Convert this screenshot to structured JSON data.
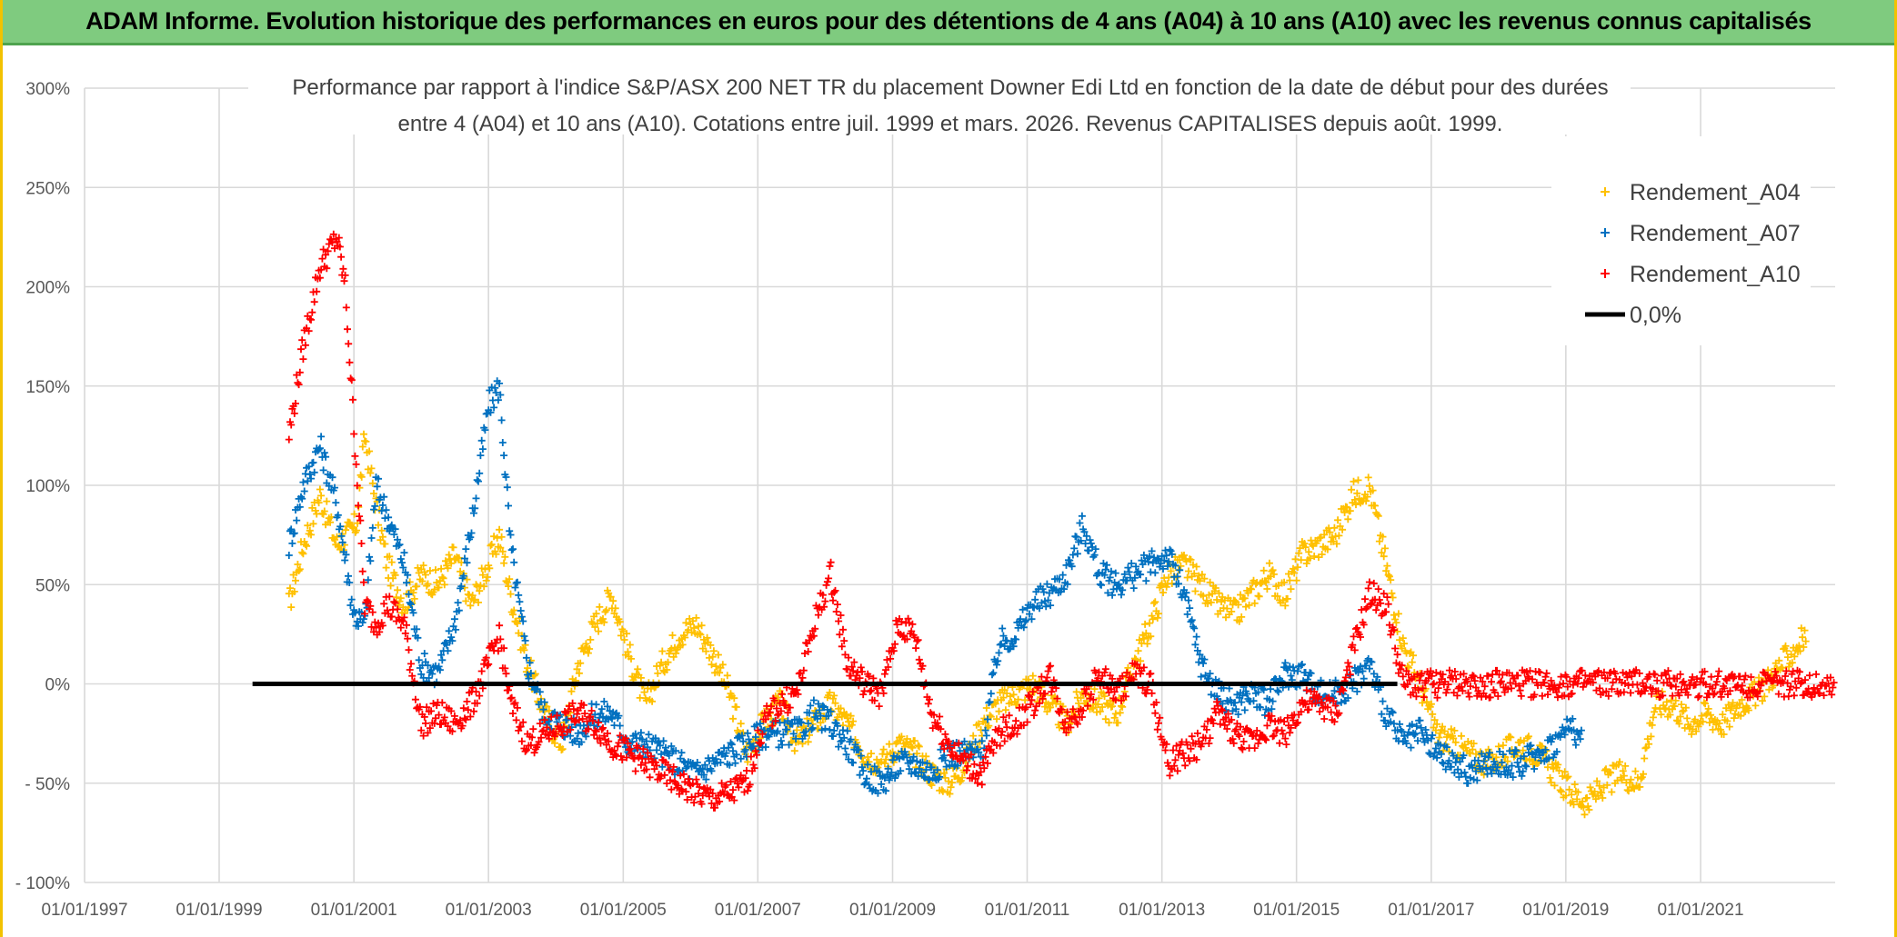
{
  "header": {
    "title": "ADAM Informe. Evolution historique des performances en euros pour des détentions de 4 ans (A04) à 10 ans (A10) avec les revenus connus capitalisés"
  },
  "chart_data": {
    "type": "scatter",
    "title_line1": "Performance par rapport à l'indice S&P/ASX 200 NET TR  du placement Downer Edi Ltd en fonction de la date de début pour des durées",
    "title_line2": "entre 4 (A04) et 10 ans (A10). Cotations entre juil. 1999 et mars. 2026. Revenus CAPITALISES depuis août. 1999.",
    "xlabel": "",
    "ylabel": "",
    "x_axis": {
      "type": "date",
      "range": [
        "1997-01-01",
        "2023-01-01"
      ],
      "tick_labels": [
        "01/01/1997",
        "01/01/1999",
        "01/01/2001",
        "01/01/2003",
        "01/01/2005",
        "01/01/2007",
        "01/01/2009",
        "01/01/2011",
        "01/01/2013",
        "01/01/2015",
        "01/01/2017",
        "01/01/2019",
        "01/01/2021"
      ]
    },
    "y_axis": {
      "range": [
        -100,
        300
      ],
      "unit": "%",
      "tick_values": [
        300,
        250,
        200,
        150,
        100,
        50,
        0,
        -50,
        -100
      ],
      "tick_labels": [
        "300%",
        "250%",
        "200%",
        "150%",
        "100%",
        "50%",
        "0%",
        "- 50%",
        "- 100%"
      ]
    },
    "grid": true,
    "legend_position": "top-right",
    "series": [
      {
        "name": "Rendement_A04",
        "color": "#ffc000",
        "marker": "plus",
        "points": [
          [
            "2000-01-15",
            40
          ],
          [
            "2000-04-01",
            70
          ],
          [
            "2000-07-01",
            95
          ],
          [
            "2000-10-01",
            70
          ],
          [
            "2001-01-15",
            80
          ],
          [
            "2001-03-01",
            125
          ],
          [
            "2001-05-01",
            90
          ],
          [
            "2001-07-01",
            60
          ],
          [
            "2001-10-01",
            40
          ],
          [
            "2002-01-01",
            55
          ],
          [
            "2002-04-01",
            50
          ],
          [
            "2002-07-01",
            65
          ],
          [
            "2002-10-01",
            40
          ],
          [
            "2003-01-01",
            60
          ],
          [
            "2003-03-01",
            75
          ],
          [
            "2003-05-01",
            45
          ],
          [
            "2003-08-01",
            10
          ],
          [
            "2003-11-01",
            -15
          ],
          [
            "2004-02-01",
            -30
          ],
          [
            "2004-05-01",
            10
          ],
          [
            "2004-08-01",
            30
          ],
          [
            "2004-11-01",
            45
          ],
          [
            "2005-02-01",
            15
          ],
          [
            "2005-05-01",
            -10
          ],
          [
            "2005-08-01",
            10
          ],
          [
            "2005-11-01",
            25
          ],
          [
            "2006-02-01",
            30
          ],
          [
            "2006-05-01",
            15
          ],
          [
            "2006-08-01",
            -5
          ],
          [
            "2006-11-01",
            -35
          ],
          [
            "2007-02-01",
            -20
          ],
          [
            "2007-05-01",
            -10
          ],
          [
            "2007-08-01",
            -30
          ],
          [
            "2007-11-01",
            -20
          ],
          [
            "2008-02-01",
            -10
          ],
          [
            "2008-05-01",
            -20
          ],
          [
            "2008-08-01",
            -35
          ],
          [
            "2008-11-01",
            -40
          ],
          [
            "2009-02-01",
            -30
          ],
          [
            "2009-05-01",
            -35
          ],
          [
            "2009-08-01",
            -45
          ],
          [
            "2009-11-01",
            -50
          ],
          [
            "2010-02-01",
            -40
          ],
          [
            "2010-05-01",
            -20
          ],
          [
            "2010-08-01",
            -10
          ],
          [
            "2010-11-01",
            -5
          ],
          [
            "2011-02-01",
            0
          ],
          [
            "2011-05-01",
            -10
          ],
          [
            "2011-08-01",
            -20
          ],
          [
            "2011-11-01",
            -5
          ],
          [
            "2012-02-01",
            -10
          ],
          [
            "2012-05-01",
            -15
          ],
          [
            "2012-08-01",
            10
          ],
          [
            "2012-11-01",
            30
          ],
          [
            "2013-02-01",
            55
          ],
          [
            "2013-05-01",
            60
          ],
          [
            "2013-08-01",
            50
          ],
          [
            "2013-11-01",
            40
          ],
          [
            "2014-02-01",
            35
          ],
          [
            "2014-05-01",
            45
          ],
          [
            "2014-08-01",
            55
          ],
          [
            "2014-11-01",
            45
          ],
          [
            "2015-02-01",
            65
          ],
          [
            "2015-05-01",
            70
          ],
          [
            "2015-08-01",
            75
          ],
          [
            "2015-11-01",
            95
          ],
          [
            "2016-02-01",
            100
          ],
          [
            "2016-05-01",
            60
          ],
          [
            "2016-08-01",
            20
          ],
          [
            "2016-11-01",
            0
          ],
          [
            "2017-02-01",
            -25
          ],
          [
            "2017-05-01",
            -30
          ],
          [
            "2017-08-01",
            -35
          ],
          [
            "2017-11-01",
            -40
          ],
          [
            "2018-02-01",
            -35
          ],
          [
            "2018-05-01",
            -30
          ],
          [
            "2018-08-01",
            -35
          ],
          [
            "2018-11-01",
            -45
          ],
          [
            "2019-02-01",
            -55
          ],
          [
            "2019-05-01",
            -60
          ],
          [
            "2019-08-01",
            -50
          ],
          [
            "2019-11-01",
            -45
          ],
          [
            "2020-02-01",
            -50
          ],
          [
            "2020-05-01",
            -10
          ],
          [
            "2020-08-01",
            -10
          ],
          [
            "2020-11-01",
            -20
          ],
          [
            "2021-02-01",
            -15
          ],
          [
            "2021-05-01",
            -20
          ],
          [
            "2021-08-01",
            -10
          ],
          [
            "2021-11-01",
            -5
          ],
          [
            "2022-02-01",
            5
          ],
          [
            "2022-05-01",
            15
          ],
          [
            "2022-08-01",
            25
          ]
        ]
      },
      {
        "name": "Rendement_A07",
        "color": "#0070c0",
        "marker": "plus",
        "points": [
          [
            "2000-01-15",
            70
          ],
          [
            "2000-04-01",
            100
          ],
          [
            "2000-07-01",
            120
          ],
          [
            "2000-10-01",
            90
          ],
          [
            "2001-01-01",
            35
          ],
          [
            "2001-03-01",
            30
          ],
          [
            "2001-05-01",
            100
          ],
          [
            "2001-07-01",
            85
          ],
          [
            "2001-10-01",
            60
          ],
          [
            "2002-01-01",
            10
          ],
          [
            "2002-04-01",
            5
          ],
          [
            "2002-07-01",
            30
          ],
          [
            "2002-10-01",
            80
          ],
          [
            "2003-01-01",
            140
          ],
          [
            "2003-03-01",
            150
          ],
          [
            "2003-05-01",
            70
          ],
          [
            "2003-08-01",
            10
          ],
          [
            "2003-11-01",
            -15
          ],
          [
            "2004-02-01",
            -20
          ],
          [
            "2004-05-01",
            -25
          ],
          [
            "2004-08-01",
            -15
          ],
          [
            "2004-11-01",
            -15
          ],
          [
            "2005-02-01",
            -30
          ],
          [
            "2005-05-01",
            -30
          ],
          [
            "2005-08-01",
            -35
          ],
          [
            "2005-11-01",
            -40
          ],
          [
            "2006-02-01",
            -45
          ],
          [
            "2006-05-01",
            -40
          ],
          [
            "2006-08-01",
            -35
          ],
          [
            "2006-11-01",
            -30
          ],
          [
            "2007-02-01",
            -25
          ],
          [
            "2007-05-01",
            -25
          ],
          [
            "2007-08-01",
            -25
          ],
          [
            "2007-11-01",
            -15
          ],
          [
            "2008-02-01",
            -20
          ],
          [
            "2008-05-01",
            -30
          ],
          [
            "2008-08-01",
            -45
          ],
          [
            "2008-11-01",
            -50
          ],
          [
            "2009-02-01",
            -40
          ],
          [
            "2009-05-01",
            -40
          ],
          [
            "2009-08-01",
            -45
          ],
          [
            "2009-11-01",
            -35
          ],
          [
            "2010-02-01",
            -35
          ],
          [
            "2010-05-01",
            -35
          ],
          [
            "2010-08-01",
            20
          ],
          [
            "2010-11-01",
            25
          ],
          [
            "2011-02-01",
            40
          ],
          [
            "2011-05-01",
            45
          ],
          [
            "2011-08-01",
            55
          ],
          [
            "2011-11-01",
            80
          ],
          [
            "2012-02-01",
            55
          ],
          [
            "2012-05-01",
            50
          ],
          [
            "2012-08-01",
            55
          ],
          [
            "2012-11-01",
            60
          ],
          [
            "2013-02-01",
            65
          ],
          [
            "2013-05-01",
            45
          ],
          [
            "2013-08-01",
            10
          ],
          [
            "2013-11-01",
            -5
          ],
          [
            "2014-02-01",
            -10
          ],
          [
            "2014-05-01",
            -5
          ],
          [
            "2014-08-01",
            -10
          ],
          [
            "2014-11-01",
            5
          ],
          [
            "2015-02-01",
            5
          ],
          [
            "2015-05-01",
            -5
          ],
          [
            "2015-08-01",
            -5
          ],
          [
            "2015-11-01",
            0
          ],
          [
            "2016-02-01",
            10
          ],
          [
            "2016-05-01",
            -15
          ],
          [
            "2016-08-01",
            -30
          ],
          [
            "2016-11-01",
            -25
          ],
          [
            "2017-02-01",
            -35
          ],
          [
            "2017-05-01",
            -40
          ],
          [
            "2017-08-01",
            -45
          ],
          [
            "2017-11-01",
            -40
          ],
          [
            "2018-02-01",
            -40
          ],
          [
            "2018-05-01",
            -40
          ],
          [
            "2018-08-01",
            -35
          ],
          [
            "2018-11-01",
            -30
          ],
          [
            "2019-02-01",
            -20
          ],
          [
            "2019-04-01",
            -30
          ]
        ]
      },
      {
        "name": "Rendement_A10",
        "color": "#ff0000",
        "marker": "plus",
        "points": [
          [
            "2000-01-15",
            125
          ],
          [
            "2000-04-01",
            170
          ],
          [
            "2000-07-01",
            210
          ],
          [
            "2000-10-01",
            225
          ],
          [
            "2000-11-15",
            200
          ],
          [
            "2001-01-01",
            130
          ],
          [
            "2001-03-01",
            40
          ],
          [
            "2001-05-01",
            30
          ],
          [
            "2001-07-01",
            40
          ],
          [
            "2001-10-01",
            30
          ],
          [
            "2002-01-01",
            -20
          ],
          [
            "2002-04-01",
            -15
          ],
          [
            "2002-07-01",
            -20
          ],
          [
            "2002-10-01",
            -10
          ],
          [
            "2003-01-01",
            10
          ],
          [
            "2003-03-01",
            25
          ],
          [
            "2003-05-01",
            -10
          ],
          [
            "2003-08-01",
            -30
          ],
          [
            "2003-11-01",
            -25
          ],
          [
            "2004-02-01",
            -20
          ],
          [
            "2004-05-01",
            -15
          ],
          [
            "2004-08-01",
            -20
          ],
          [
            "2004-11-01",
            -30
          ],
          [
            "2005-02-01",
            -35
          ],
          [
            "2005-05-01",
            -40
          ],
          [
            "2005-08-01",
            -45
          ],
          [
            "2005-11-01",
            -50
          ],
          [
            "2006-02-01",
            -55
          ],
          [
            "2006-05-01",
            -58
          ],
          [
            "2006-08-01",
            -55
          ],
          [
            "2006-11-01",
            -50
          ],
          [
            "2007-02-01",
            -20
          ],
          [
            "2007-05-01",
            -10
          ],
          [
            "2007-08-01",
            -5
          ],
          [
            "2007-11-01",
            30
          ],
          [
            "2008-02-01",
            55
          ],
          [
            "2008-05-01",
            10
          ],
          [
            "2008-08-01",
            0
          ],
          [
            "2008-11-01",
            -5
          ],
          [
            "2009-02-01",
            30
          ],
          [
            "2009-05-01",
            25
          ],
          [
            "2009-08-01",
            -15
          ],
          [
            "2009-11-01",
            -30
          ],
          [
            "2010-02-01",
            -40
          ],
          [
            "2010-05-01",
            -45
          ],
          [
            "2010-08-01",
            -25
          ],
          [
            "2010-11-01",
            -20
          ],
          [
            "2011-02-01",
            -10
          ],
          [
            "2011-05-01",
            5
          ],
          [
            "2011-08-01",
            -20
          ],
          [
            "2011-11-01",
            -10
          ],
          [
            "2012-02-01",
            5
          ],
          [
            "2012-05-01",
            -5
          ],
          [
            "2012-08-01",
            5
          ],
          [
            "2012-11-01",
            0
          ],
          [
            "2013-02-01",
            -40
          ],
          [
            "2013-05-01",
            -35
          ],
          [
            "2013-08-01",
            -30
          ],
          [
            "2013-11-01",
            -15
          ],
          [
            "2014-02-01",
            -25
          ],
          [
            "2014-05-01",
            -30
          ],
          [
            "2014-08-01",
            -20
          ],
          [
            "2014-11-01",
            -25
          ],
          [
            "2015-02-01",
            -10
          ],
          [
            "2015-05-01",
            -10
          ],
          [
            "2015-08-01",
            -15
          ],
          [
            "2015-11-01",
            15
          ],
          [
            "2016-02-01",
            45
          ],
          [
            "2016-05-01",
            40
          ],
          [
            "2016-08-01",
            0
          ],
          [
            "2022-12-31",
            0
          ]
        ]
      },
      {
        "name": "0,0%",
        "color": "#000000",
        "marker": "line",
        "points": [
          [
            "1999-07-01",
            0
          ],
          [
            "2016-07-01",
            0
          ]
        ]
      }
    ]
  }
}
